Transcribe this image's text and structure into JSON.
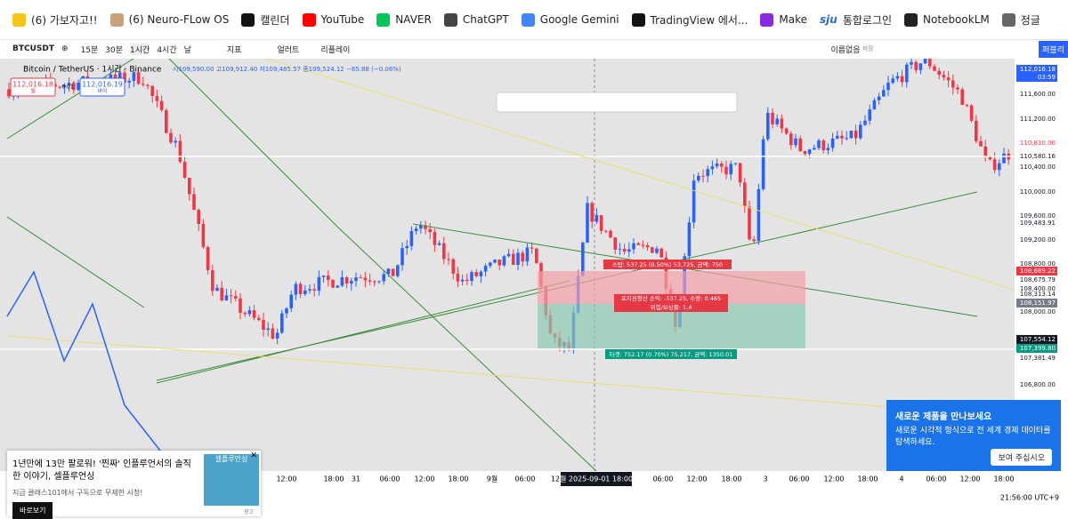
{
  "bookmarks": [
    "(6) 가보자고!!",
    "(6) Neuro-FLow OS",
    "캘린더",
    "YouTube",
    "NAVER",
    "ChatGPT",
    "Google Gemini",
    "TradingView 에서...",
    "Make",
    "통합로그인",
    "NotebookLM",
    "정글"
  ],
  "bookmark_badges": {
    "sju": "sju"
  },
  "toolbar": {
    "symbol": "BTCUSDT",
    "intervals": [
      "15분",
      "30분",
      "1시간",
      "4시간",
      "날"
    ],
    "indicators": "지표",
    "alert": "얼러트",
    "replay": "리플레이",
    "layout_name": "이름없음",
    "saved": "저장",
    "publish": "퍼블리"
  },
  "legend": {
    "title": "Bitcoin / TetherUS · 1시간 · Binance",
    "ohlc": "시109,590.00 고109,912.40 저109,485.57 종109,524.12 −65.88 (−0.06%)",
    "sell_price": "112,016.18",
    "sell": "셀",
    "spread": "0.01",
    "buy_price": "112,016.19",
    "buy": "바이"
  },
  "price_axis": [
    "112,016.18",
    "03:59",
    "111,600.00",
    "111,200.00",
    "110,810.00",
    "110,580.16",
    "110,400.00",
    "110,000.00",
    "109,600.00",
    "109,483.91",
    "109,200.00",
    "108,800.00",
    "108,689.22",
    "108,675.79",
    "108,400.00",
    "108,313.14",
    "108,151.97",
    "108,000.00",
    "107,554.12",
    "107,399.80",
    "107,381.49",
    "106,800.00"
  ],
  "time_axis": [
    "12:00",
    "18:00",
    "31",
    "06:00",
    "12:00",
    "18:00",
    "9월",
    "06:00",
    "12",
    "06:00",
    "12:00",
    "18:00",
    "3",
    "06:00",
    "12:00",
    "18:00",
    "4",
    "06:00",
    "12:00",
    "18:00"
  ],
  "crosshair_time": "월 2025-09-01  18:00",
  "position": {
    "stop": "스탑: 537.25 (0.50%) 53,725, 금액: 750",
    "close": "포지션청산 손익: -537.25, 수량: 0.465",
    "ratio": "위험/보상률: 1.4",
    "target": "타겟: 752.17 (0.70%) 75,217, 금액: 1350.01"
  },
  "ad": {
    "title": "1년만에 13만 팔로워! '찐짜' 인플루언서의 솔직한 이야기, 셀플루언싱",
    "subtitle": "지금 클래스101에서 구독으로 무제한 시청!",
    "button": "바로보기",
    "label": "광고",
    "image_text": "셀플루언싱"
  },
  "notice": {
    "title": "새로운 제품을 만나보세요",
    "body": "새로운 시각적 형식으로 전 세계 경제 데이터를 탐색하세요.",
    "button": "보여 주십시오"
  },
  "clock": "21:56:00 UTC+9"
}
